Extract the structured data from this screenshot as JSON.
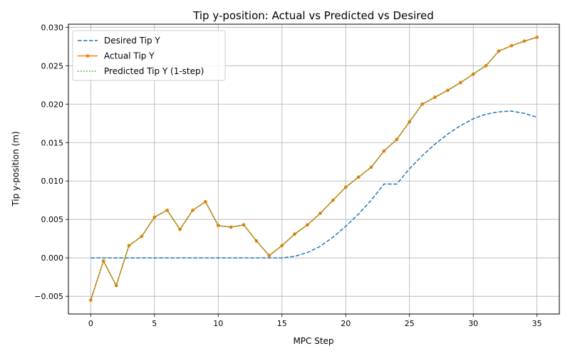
{
  "chart_data": {
    "type": "line",
    "title": "Tip y-position: Actual vs Predicted vs Desired",
    "xlabel": "MPC Step",
    "ylabel": "Tip y-position (m)",
    "xlim": [
      -1.75,
      36.75
    ],
    "ylim": [
      -0.0073,
      0.0304
    ],
    "xticks": [
      0,
      5,
      10,
      15,
      20,
      25,
      30,
      35
    ],
    "xtick_labels": [
      "0",
      "5",
      "10",
      "15",
      "20",
      "25",
      "30",
      "35"
    ],
    "yticks": [
      -0.005,
      0.0,
      0.005,
      0.01,
      0.015,
      0.02,
      0.025,
      0.03
    ],
    "ytick_labels": [
      "−0.005",
      "0.000",
      "0.005",
      "0.010",
      "0.015",
      "0.020",
      "0.025",
      "0.030"
    ],
    "grid": true,
    "legend_position": "upper-left",
    "x": [
      0,
      1,
      2,
      3,
      4,
      5,
      6,
      7,
      8,
      9,
      10,
      11,
      12,
      13,
      14,
      15,
      16,
      17,
      18,
      19,
      20,
      21,
      22,
      23,
      24,
      25,
      26,
      27,
      28,
      29,
      30,
      31,
      32,
      33,
      34,
      35
    ],
    "series": [
      {
        "name": "Desired Tip Y",
        "color": "#1f77b4",
        "style": "dashed",
        "values": [
          0,
          0,
          0,
          0,
          0,
          0,
          0,
          0,
          0,
          0,
          0,
          0,
          0,
          0,
          0,
          0.0,
          0.0002,
          0.0007,
          0.0015,
          0.0027,
          0.0041,
          0.0057,
          0.0075,
          0.0096,
          0.0096,
          0.0116,
          0.0133,
          0.0148,
          0.0161,
          0.0172,
          0.0181,
          0.0187,
          0.019,
          0.0191,
          0.0188,
          0.0183
        ]
      },
      {
        "name": "Actual Tip Y",
        "color": "#ff7f0e",
        "style": "solid-markers",
        "values": [
          -0.0055,
          -0.0004,
          -0.0036,
          0.0016,
          0.0028,
          0.0053,
          0.0062,
          0.0037,
          0.0062,
          0.0073,
          0.0042,
          0.004,
          0.0043,
          0.0022,
          0.0003,
          0.0016,
          0.0031,
          0.0043,
          0.0058,
          0.0075,
          0.0092,
          0.0105,
          0.0118,
          0.0139,
          0.0154,
          0.0177,
          0.02,
          0.0209,
          0.0218,
          0.0228,
          0.0239,
          0.025,
          0.0269,
          0.0276,
          0.0282,
          0.0287
        ]
      },
      {
        "name": "Predicted Tip Y (1-step)",
        "color": "#2ca02c",
        "style": "dotted",
        "values": [
          -0.0055,
          -0.0004,
          -0.0036,
          0.0016,
          0.0028,
          0.0053,
          0.0062,
          0.0037,
          0.0062,
          0.0073,
          0.0042,
          0.004,
          0.0043,
          0.0022,
          0.0003,
          0.0016,
          0.0031,
          0.0043,
          0.0058,
          0.0075,
          0.0092,
          0.0105,
          0.0118,
          0.0139,
          0.0154,
          0.0177,
          0.02,
          0.0209,
          0.0218,
          0.0228,
          0.0239,
          0.025,
          0.0269,
          0.0276,
          0.0282,
          0.0287
        ]
      }
    ]
  }
}
